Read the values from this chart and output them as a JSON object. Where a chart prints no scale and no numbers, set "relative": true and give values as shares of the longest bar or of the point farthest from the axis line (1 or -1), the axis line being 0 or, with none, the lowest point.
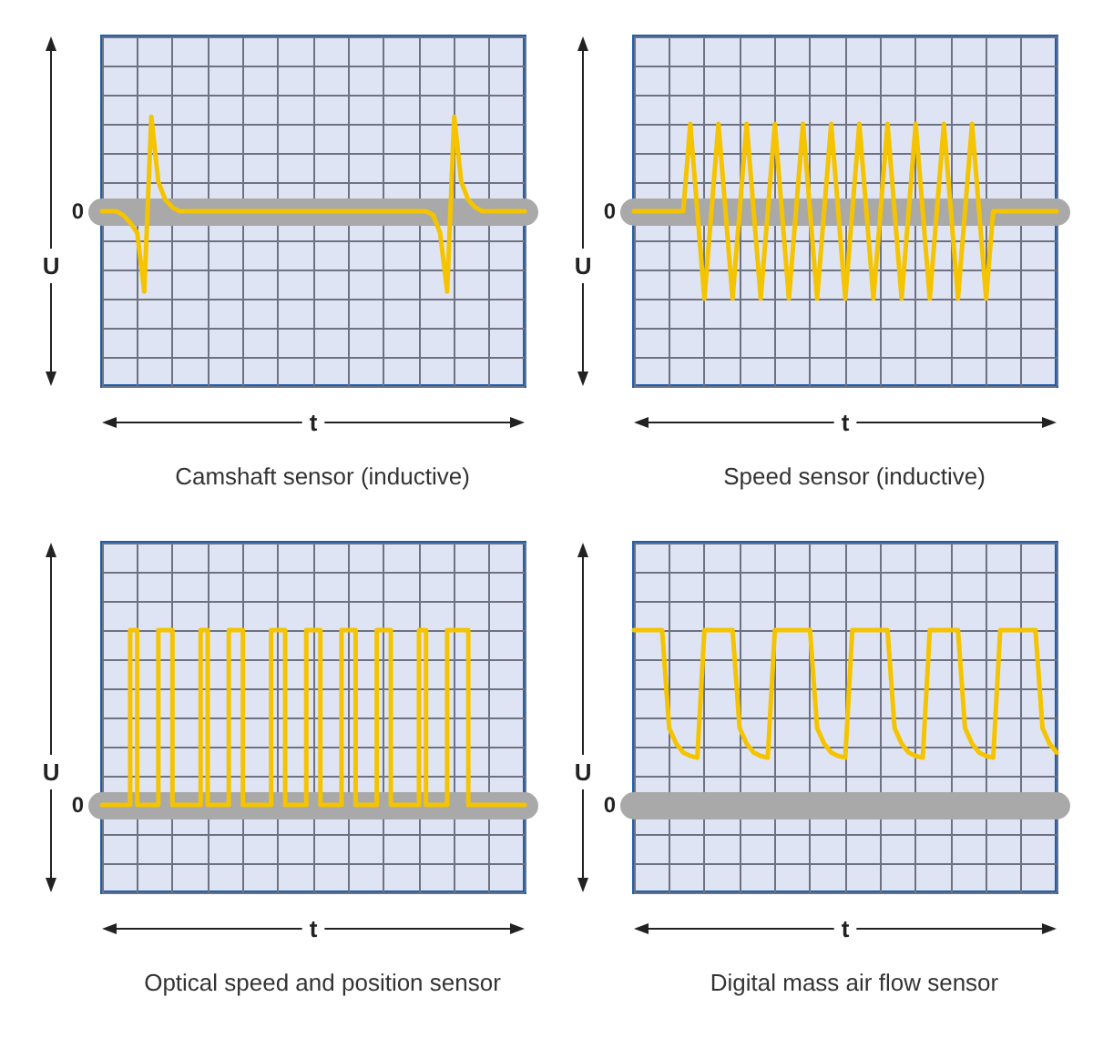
{
  "chart_data": [
    {
      "type": "line",
      "title": "Camshaft sensor (inductive)",
      "xlabel": "t",
      "ylabel": "U",
      "relative": true,
      "grid": true,
      "annotations": [
        "0"
      ],
      "categories": [
        null,
        null,
        null,
        null,
        null,
        null,
        null,
        null,
        null,
        null,
        null,
        null,
        null,
        null,
        null,
        null,
        null,
        null,
        null,
        null,
        null,
        null,
        null,
        null,
        null,
        null,
        null,
        null,
        null,
        null,
        null,
        null,
        null,
        null,
        null,
        null,
        null,
        null,
        null,
        null,
        null,
        null,
        null,
        null,
        null,
        null,
        null,
        null,
        null,
        null,
        null,
        null,
        null,
        null,
        null,
        null,
        null,
        null,
        null,
        null,
        null
      ],
      "series": [
        {
          "color": "#f5c400",
          "values": [
            0,
            0,
            0,
            -0.04,
            -0.12,
            -0.23,
            -0.85,
            1,
            0.31,
            0.12,
            0.04,
            0,
            0,
            0,
            0,
            0,
            0,
            0,
            0,
            0,
            0,
            0,
            0,
            0,
            0,
            0,
            0,
            0,
            0,
            0,
            0,
            0,
            0,
            0,
            0,
            0,
            0,
            0,
            0,
            0,
            0,
            0,
            0,
            0,
            0,
            0,
            0,
            -0.04,
            -0.23,
            -0.85,
            1,
            0.31,
            0.12,
            0.04,
            0,
            0,
            0,
            0,
            0,
            0,
            0
          ]
        }
      ]
    },
    {
      "type": "line",
      "title": "Speed sensor (inductive)",
      "xlabel": "t",
      "ylabel": "U",
      "relative": true,
      "grid": true,
      "annotations": [
        "0"
      ],
      "categories": [
        null,
        null,
        null,
        null,
        null,
        null,
        null,
        null,
        null,
        null,
        null,
        null,
        null,
        null,
        null,
        null,
        null,
        null,
        null,
        null,
        null,
        null,
        null,
        null,
        null,
        null,
        null,
        null,
        null,
        null,
        null,
        null,
        null,
        null,
        null,
        null,
        null,
        null,
        null,
        null,
        null,
        null,
        null,
        null,
        null,
        null,
        null,
        null,
        null,
        null,
        null,
        null,
        null,
        null,
        null,
        null,
        null,
        null,
        null,
        null,
        null
      ],
      "series": [
        {
          "color": "#f5c400",
          "values": [
            0,
            0,
            0,
            0,
            0,
            0,
            0,
            0,
            1,
            0,
            -1,
            0,
            1,
            0,
            -1,
            0,
            1,
            0,
            -1,
            0,
            1,
            0,
            -1,
            0,
            1,
            0,
            -1,
            0,
            1,
            0,
            -1,
            0,
            1,
            0,
            -1,
            0,
            1,
            0,
            -1,
            0,
            1,
            0,
            -1,
            0,
            1,
            0,
            -1,
            0,
            1,
            0,
            -1,
            0,
            0,
            0,
            0,
            0,
            0,
            0,
            0,
            0,
            0
          ]
        }
      ]
    },
    {
      "type": "step",
      "title": "Optical speed and position sensor",
      "xlabel": "t",
      "ylabel": "U",
      "relative": true,
      "grid": true,
      "annotations": [
        "0"
      ],
      "categories": [
        null,
        null,
        null,
        null,
        null,
        null,
        null,
        null,
        null,
        null,
        null,
        null,
        null,
        null,
        null,
        null,
        null,
        null,
        null,
        null,
        null,
        null,
        null,
        null,
        null,
        null,
        null,
        null,
        null,
        null,
        null,
        null,
        null,
        null,
        null,
        null,
        null,
        null,
        null,
        null,
        null,
        null,
        null,
        null,
        null,
        null,
        null,
        null,
        null,
        null,
        null,
        null,
        null,
        null,
        null,
        null,
        null,
        null,
        null,
        null,
        null
      ],
      "series": [
        {
          "color": "#f5c400",
          "values": [
            0,
            0,
            0,
            0,
            1,
            0,
            0,
            0,
            1,
            1,
            0,
            0,
            0,
            0,
            1,
            0,
            0,
            0,
            1,
            1,
            0,
            0,
            0,
            0,
            1,
            1,
            0,
            0,
            0,
            1,
            1,
            0,
            0,
            0,
            1,
            1,
            0,
            0,
            0,
            1,
            1,
            0,
            0,
            0,
            0,
            1,
            0,
            0,
            0,
            1,
            1,
            1,
            0,
            0,
            0,
            0,
            0,
            0,
            0,
            0,
            0
          ]
        }
      ]
    },
    {
      "type": "line",
      "title": "Digital mass air flow sensor",
      "xlabel": "t",
      "ylabel": "U",
      "relative": true,
      "grid": true,
      "annotations": [
        "0"
      ],
      "categories": [
        null,
        null,
        null,
        null,
        null,
        null,
        null,
        null,
        null,
        null,
        null,
        null,
        null,
        null,
        null,
        null,
        null,
        null,
        null,
        null,
        null,
        null,
        null,
        null,
        null,
        null,
        null,
        null,
        null,
        null,
        null,
        null,
        null,
        null,
        null,
        null,
        null,
        null,
        null,
        null,
        null,
        null,
        null,
        null,
        null,
        null,
        null,
        null,
        null,
        null,
        null,
        null,
        null,
        null,
        null,
        null,
        null,
        null,
        null,
        null,
        null
      ],
      "series": [
        {
          "color": "#f5c400",
          "values": [
            1,
            1,
            1,
            1,
            1,
            0.44,
            0.35,
            0.3,
            0.28,
            0.27,
            1,
            1,
            1,
            1,
            1,
            0.44,
            0.35,
            0.3,
            0.28,
            0.27,
            1,
            1,
            1,
            1,
            1,
            1,
            0.44,
            0.35,
            0.3,
            0.28,
            0.27,
            1,
            1,
            1,
            1,
            1,
            1,
            0.44,
            0.35,
            0.3,
            0.28,
            0.27,
            1,
            1,
            1,
            1,
            1,
            0.44,
            0.35,
            0.3,
            0.28,
            0.27,
            1,
            1,
            1,
            1,
            1,
            1,
            0.44,
            0.35,
            0.3
          ]
        }
      ]
    }
  ]
}
